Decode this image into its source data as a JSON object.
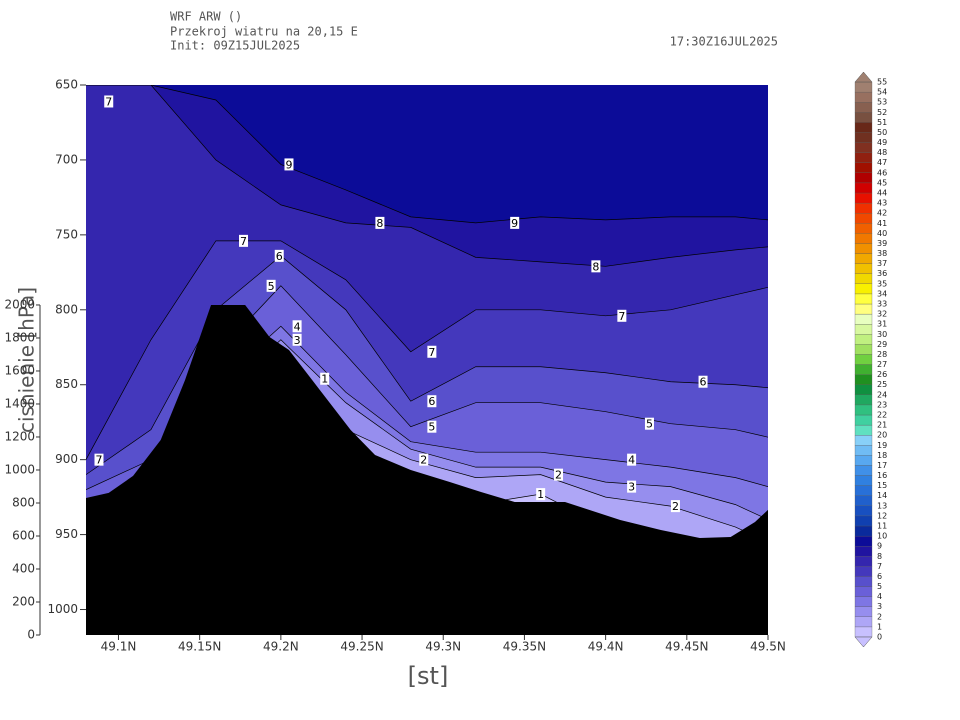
{
  "chart_data": {
    "type": "contour",
    "header": [
      "WRF ARW ()",
      "Przekroj wiatru na 20,15 E",
      "Init: 09Z15JUL2025"
    ],
    "valid_time": "17:30Z16JUL2025",
    "xlabel": "[st]",
    "ylabel": "cisnienie [hPa]",
    "xlim": [
      49.08,
      49.5
    ],
    "xticks": [
      {
        "value": 49.1,
        "label": "49.1N"
      },
      {
        "value": 49.15,
        "label": "49.15N"
      },
      {
        "value": 49.2,
        "label": "49.2N"
      },
      {
        "value": 49.25,
        "label": "49.25N"
      },
      {
        "value": 49.3,
        "label": "49.3N"
      },
      {
        "value": 49.35,
        "label": "49.35N"
      },
      {
        "value": 49.4,
        "label": "49.4N"
      },
      {
        "value": 49.45,
        "label": "49.45N"
      },
      {
        "value": 49.5,
        "label": "49.5N"
      }
    ],
    "ylim": [
      1017,
      650
    ],
    "yticks": [
      650,
      700,
      750,
      800,
      850,
      900,
      950,
      1000
    ],
    "y2lim": [
      0,
      3333
    ],
    "y2ticks": [
      0,
      200,
      400,
      600,
      800,
      1000,
      1200,
      1400,
      1600,
      1800,
      2000
    ],
    "grid_x": [
      49.08,
      49.12,
      49.16,
      49.2,
      49.24,
      49.28,
      49.32,
      49.36,
      49.4,
      49.44,
      49.48,
      49.5
    ],
    "contours": [
      {
        "level": 1,
        "pressures": [
          960,
          940,
          900,
          846,
          900,
          920,
          930,
          923,
          945,
          960,
          965,
          970
        ]
      },
      {
        "level": 2,
        "pressures": [
          950,
          930,
          880,
          838,
          880,
          900,
          912,
          910,
          925,
          931,
          945,
          955
        ]
      },
      {
        "level": 3,
        "pressures": [
          940,
          920,
          860,
          820,
          862,
          893,
          905,
          905,
          915,
          918,
          930,
          940
        ]
      },
      {
        "level": 4,
        "pressures": [
          930,
          910,
          850,
          811,
          855,
          888,
          895,
          895,
          900,
          905,
          912,
          918
        ]
      },
      {
        "level": 5,
        "pressures": [
          920,
          900,
          830,
          784,
          830,
          878,
          862,
          862,
          868,
          876,
          880,
          885
        ]
      },
      {
        "level": 6,
        "pressures": [
          910,
          880,
          800,
          764,
          800,
          861,
          838,
          838,
          842,
          848,
          850,
          852
        ]
      },
      {
        "level": 7,
        "pressures": [
          900,
          820,
          754,
          754,
          780,
          828,
          800,
          800,
          804,
          800,
          790,
          785
        ]
      },
      {
        "level": 8,
        "pressures": [
          650,
          650,
          700,
          730,
          742,
          745,
          765,
          768,
          771,
          765,
          760,
          758
        ]
      },
      {
        "level": 9,
        "pressures": [
          650,
          650,
          660,
          703,
          720,
          738,
          742,
          738,
          740,
          738,
          738,
          740
        ]
      }
    ],
    "terrain": {
      "x": [
        49.08,
        49.094,
        49.109,
        49.126,
        49.141,
        49.157,
        49.178,
        49.193,
        49.205,
        49.224,
        49.243,
        49.258,
        49.28,
        49.304,
        49.323,
        49.344,
        49.375,
        49.409,
        49.434,
        49.458,
        49.477,
        49.492,
        49.5
      ],
      "heights": [
        830,
        861,
        964,
        1182,
        1545,
        2000,
        2000,
        1806,
        1727,
        1485,
        1242,
        1091,
        1000,
        927,
        867,
        806,
        806,
        697,
        636,
        588,
        594,
        685,
        758
      ],
      "color": "#000000",
      "axis": "y2"
    },
    "contour_labels": [
      {
        "value": 7,
        "x": 49.094,
        "y": 661
      },
      {
        "value": 9,
        "x": 49.205,
        "y": 703
      },
      {
        "value": 7,
        "x": 49.177,
        "y": 754
      },
      {
        "value": 6,
        "x": 49.199,
        "y": 764
      },
      {
        "value": 8,
        "x": 49.261,
        "y": 742
      },
      {
        "value": 9,
        "x": 49.344,
        "y": 742
      },
      {
        "value": 8,
        "x": 49.394,
        "y": 771
      },
      {
        "value": 7,
        "x": 49.41,
        "y": 804
      },
      {
        "value": 5,
        "x": 49.194,
        "y": 784
      },
      {
        "value": 4,
        "x": 49.21,
        "y": 811
      },
      {
        "value": 3,
        "x": 49.21,
        "y": 820
      },
      {
        "value": 1,
        "x": 49.227,
        "y": 846
      },
      {
        "value": 7,
        "x": 49.293,
        "y": 828
      },
      {
        "value": 6,
        "x": 49.293,
        "y": 861
      },
      {
        "value": 5,
        "x": 49.293,
        "y": 878
      },
      {
        "value": 2,
        "x": 49.288,
        "y": 900
      },
      {
        "value": 6,
        "x": 49.46,
        "y": 848
      },
      {
        "value": 5,
        "x": 49.427,
        "y": 876
      },
      {
        "value": 4,
        "x": 49.416,
        "y": 900
      },
      {
        "value": 3,
        "x": 49.416,
        "y": 918
      },
      {
        "value": 2,
        "x": 49.371,
        "y": 910
      },
      {
        "value": 1,
        "x": 49.36,
        "y": 923
      },
      {
        "value": 2,
        "x": 49.443,
        "y": 931
      },
      {
        "value": 7,
        "x": 49.088,
        "y": 900
      }
    ],
    "colorbar_levels": [
      0,
      1,
      2,
      3,
      4,
      5,
      6,
      7,
      8,
      9,
      10,
      11,
      12,
      13,
      14,
      15,
      16,
      17,
      18,
      19,
      20,
      21,
      22,
      23,
      24,
      25,
      26,
      27,
      28,
      29,
      30,
      31,
      32,
      33,
      34,
      35,
      36,
      37,
      38,
      39,
      40,
      41,
      42,
      43,
      44,
      45,
      46,
      47,
      48,
      49,
      50,
      51,
      52,
      53,
      54,
      55
    ],
    "colorbar_colors": [
      "#c8c0ff",
      "#aea6f6",
      "#968eee",
      "#7e76e4",
      "#6a60d8",
      "#5850cc",
      "#4438bc",
      "#3426ae",
      "#2014a0",
      "#0c0c98",
      "#0a2a9c",
      "#1040b0",
      "#1850c0",
      "#2060cc",
      "#2870d8",
      "#3080e0",
      "#4090e8",
      "#58a8f0",
      "#70bcf4",
      "#88d0f8",
      "#60e0c0",
      "#40d0a0",
      "#30c080",
      "#20a860",
      "#109040",
      "#209020",
      "#40b030",
      "#70d040",
      "#a0e060",
      "#c0f080",
      "#d8f8a0",
      "#e8ffc0",
      "#ffff80",
      "#ffff40",
      "#f8f000",
      "#f0d800",
      "#f0c000",
      "#f0a800",
      "#f09000",
      "#f07800",
      "#f06000",
      "#f04800",
      "#f03000",
      "#e81000",
      "#d00000",
      "#b00000",
      "#a01000",
      "#902010",
      "#803020",
      "#703020",
      "#682818",
      "#785040",
      "#886050",
      "#987060",
      "#a08070"
    ]
  }
}
